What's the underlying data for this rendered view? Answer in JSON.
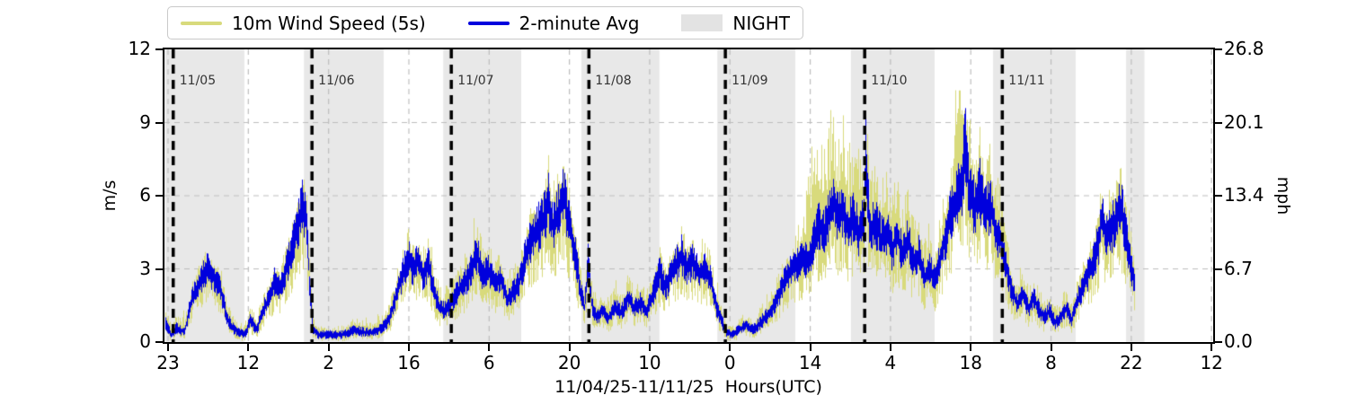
{
  "figure": {
    "legend": {
      "items": [
        {
          "label": "10m Wind Speed (5s)",
          "swatch": "line",
          "color": "#d8da7c"
        },
        {
          "label": "2-minute Avg",
          "swatch": "line",
          "color": "#0000dd"
        },
        {
          "label": "NIGHT",
          "swatch": "patch",
          "color": "#e3e3e3"
        }
      ]
    },
    "axes": {
      "ylabel_left": "m/s",
      "ylabel_right": "mph",
      "xlabel": "11/04/25-11/11/25  Hours(UTC)",
      "yticks_left": [
        {
          "v": 0,
          "label": "0"
        },
        {
          "v": 3,
          "label": "3"
        },
        {
          "v": 6,
          "label": "6"
        },
        {
          "v": 9,
          "label": "9"
        },
        {
          "v": 12,
          "label": "12"
        }
      ],
      "yticks_right": [
        {
          "v": 0,
          "label": "0.0"
        },
        {
          "v": 3,
          "label": "6.7"
        },
        {
          "v": 6,
          "label": "13.4"
        },
        {
          "v": 9,
          "label": "20.1"
        },
        {
          "v": 12,
          "label": "26.8"
        }
      ],
      "xticks": [
        {
          "t": 1,
          "label": "23"
        },
        {
          "t": 15,
          "label": "12"
        },
        {
          "t": 29,
          "label": "2"
        },
        {
          "t": 43,
          "label": "16"
        },
        {
          "t": 57,
          "label": "6"
        },
        {
          "t": 71,
          "label": "20"
        },
        {
          "t": 85,
          "label": "10"
        },
        {
          "t": 99,
          "label": "0"
        },
        {
          "t": 113,
          "label": "14"
        },
        {
          "t": 127,
          "label": "4"
        },
        {
          "t": 141,
          "label": "18"
        },
        {
          "t": 155,
          "label": "8"
        },
        {
          "t": 169,
          "label": "22"
        },
        {
          "t": 183,
          "label": "12"
        }
      ]
    },
    "day_markers": [
      {
        "t": 1.9,
        "label": "11/05"
      },
      {
        "t": 26.1,
        "label": "11/06"
      },
      {
        "t": 50.4,
        "label": "11/07"
      },
      {
        "t": 74.4,
        "label": "11/08"
      },
      {
        "t": 98.2,
        "label": "11/09"
      },
      {
        "t": 122.5,
        "label": "11/10"
      },
      {
        "t": 146.5,
        "label": "11/11"
      }
    ],
    "night_bands": [
      [
        0.3,
        14.3
      ],
      [
        24.7,
        38.6
      ],
      [
        49.0,
        62.6
      ],
      [
        73.1,
        86.7
      ],
      [
        96.8,
        110.4
      ],
      [
        120.1,
        134.7
      ],
      [
        144.9,
        159.3
      ],
      [
        168.1,
        171.3
      ]
    ],
    "colors": {
      "raw": "#d8da7c",
      "avg": "#0000dd",
      "night": "#e8e8e8",
      "grid": "#bdbdbd",
      "day_line": "#000000",
      "annotation": "#333333"
    }
  },
  "chart_data": {
    "type": "line",
    "title": "",
    "xlabel": "11/04/25-11/11/25  Hours(UTC)",
    "ylabel_left": "m/s",
    "ylabel_right": "mph",
    "ylim_mps": [
      0,
      12
    ],
    "ylim_mph": [
      0.0,
      26.8
    ],
    "ytick_labels_mps": [
      "0",
      "3",
      "6",
      "9",
      "12"
    ],
    "ytick_labels_mph": [
      "0.0",
      "6.7",
      "13.4",
      "20.1",
      "26.8"
    ],
    "x_axis": "hours since 11/04/25 22:00 UTC, one tick every 14 h",
    "xtick_hours_utc": [
      "23",
      "12",
      "2",
      "16",
      "6",
      "20",
      "10",
      "0",
      "14",
      "4",
      "18",
      "8",
      "22",
      "12"
    ],
    "legend_position": "upper left",
    "grid": true,
    "day_lines": [
      "11/05",
      "11/06",
      "11/07",
      "11/08",
      "11/09",
      "11/10",
      "11/11"
    ],
    "night_label": "NIGHT",
    "series": [
      {
        "name": "10m Wind Speed (5s)",
        "color": "#d8da7c",
        "style": "noisy 5-second raw trace (gust/lull envelope around average)"
      },
      {
        "name": "2-minute Avg",
        "color": "#0000dd",
        "style": "2-minute averaged wind speed"
      },
      {
        "name": "NIGHT",
        "color": "#e8e8e8",
        "style": "shaded night-time bands"
      }
    ],
    "series_columns": [
      "t_hours_from_1104_2200utc",
      "avg_2min_mps",
      "gust_5s_peak_mps"
    ],
    "samples": [
      [
        0.4,
        0.8,
        1.4
      ],
      [
        1.5,
        0.3,
        0.8
      ],
      [
        2.4,
        0.6,
        1.2
      ],
      [
        3.8,
        0.4,
        1.1
      ],
      [
        4.9,
        1.6,
        2.3
      ],
      [
        5.9,
        2.2,
        3.0
      ],
      [
        7.0,
        2.8,
        3.6
      ],
      [
        7.9,
        3.0,
        3.9
      ],
      [
        9.0,
        2.6,
        3.5
      ],
      [
        10.1,
        2.2,
        3.1
      ],
      [
        11.2,
        1.0,
        1.9
      ],
      [
        12.1,
        0.6,
        1.3
      ],
      [
        13.2,
        0.4,
        0.9
      ],
      [
        14.3,
        0.3,
        0.8
      ],
      [
        15.3,
        0.9,
        1.6
      ],
      [
        16.4,
        0.5,
        1.1
      ],
      [
        17.5,
        1.3,
        2.1
      ],
      [
        18.6,
        1.8,
        2.7
      ],
      [
        19.7,
        2.6,
        3.5
      ],
      [
        20.6,
        2.2,
        3.2
      ],
      [
        21.5,
        3.0,
        4.1
      ],
      [
        22.6,
        3.8,
        5.0
      ],
      [
        23.6,
        4.8,
        6.2
      ],
      [
        24.4,
        5.7,
        7.0
      ],
      [
        25.1,
        4.9,
        6.3
      ],
      [
        25.6,
        2.5,
        4.0
      ],
      [
        26.2,
        0.5,
        1.2
      ],
      [
        27.3,
        0.3,
        0.7
      ],
      [
        28.9,
        0.3,
        0.6
      ],
      [
        31.2,
        0.3,
        0.7
      ],
      [
        33.6,
        0.5,
        1.0
      ],
      [
        35.2,
        0.4,
        0.9
      ],
      [
        36.7,
        0.4,
        0.8
      ],
      [
        38.3,
        0.6,
        1.2
      ],
      [
        39.6,
        1.0,
        1.8
      ],
      [
        40.7,
        1.9,
        2.8
      ],
      [
        41.9,
        2.8,
        3.8
      ],
      [
        42.8,
        3.5,
        4.7
      ],
      [
        43.6,
        2.9,
        4.0
      ],
      [
        44.4,
        3.3,
        4.4
      ],
      [
        45.4,
        2.8,
        3.9
      ],
      [
        46.3,
        3.2,
        4.3
      ],
      [
        47.2,
        2.2,
        3.3
      ],
      [
        48.2,
        1.4,
        2.4
      ],
      [
        49.3,
        1.3,
        2.2
      ],
      [
        50.4,
        1.6,
        2.6
      ],
      [
        51.5,
        2.1,
        3.1
      ],
      [
        52.6,
        2.4,
        3.4
      ],
      [
        53.7,
        2.9,
        4.0
      ],
      [
        54.8,
        3.6,
        5.5
      ],
      [
        55.9,
        2.7,
        3.9
      ],
      [
        56.8,
        2.9,
        4.1
      ],
      [
        57.9,
        2.4,
        3.5
      ],
      [
        59.0,
        2.6,
        3.7
      ],
      [
        60.1,
        1.7,
        2.7
      ],
      [
        61.0,
        2.0,
        3.0
      ],
      [
        62.1,
        2.4,
        3.5
      ],
      [
        63.1,
        3.3,
        4.5
      ],
      [
        64.2,
        4.2,
        5.6
      ],
      [
        65.3,
        4.6,
        6.1
      ],
      [
        66.4,
        5.0,
        6.6
      ],
      [
        67.3,
        5.9,
        8.3
      ],
      [
        68.1,
        4.6,
        6.4
      ],
      [
        69.0,
        5.3,
        7.1
      ],
      [
        70.0,
        6.0,
        7.8
      ],
      [
        70.9,
        4.8,
        6.5
      ],
      [
        71.8,
        3.9,
        5.4
      ],
      [
        72.8,
        2.2,
        3.5
      ],
      [
        73.6,
        1.4,
        2.5
      ],
      [
        74.2,
        3.3,
        4.4
      ],
      [
        74.8,
        1.6,
        2.7
      ],
      [
        75.6,
        1.0,
        1.9
      ],
      [
        76.7,
        1.3,
        2.2
      ],
      [
        77.8,
        1.0,
        1.9
      ],
      [
        78.9,
        1.4,
        2.4
      ],
      [
        80.0,
        1.2,
        2.1
      ],
      [
        81.1,
        1.8,
        2.8
      ],
      [
        82.2,
        1.4,
        2.4
      ],
      [
        83.3,
        1.6,
        2.6
      ],
      [
        84.4,
        1.3,
        2.3
      ],
      [
        85.5,
        1.9,
        2.9
      ],
      [
        86.6,
        2.9,
        4.0
      ],
      [
        87.7,
        2.2,
        3.3
      ],
      [
        88.8,
        2.9,
        4.0
      ],
      [
        89.9,
        3.3,
        4.5
      ],
      [
        90.5,
        3.6,
        4.8
      ],
      [
        91.3,
        3.0,
        4.2
      ],
      [
        92.4,
        3.3,
        4.5
      ],
      [
        93.5,
        2.8,
        3.9
      ],
      [
        94.6,
        3.1,
        4.3
      ],
      [
        95.5,
        2.6,
        3.7
      ],
      [
        96.6,
        1.4,
        2.4
      ],
      [
        97.6,
        0.8,
        1.5
      ],
      [
        98.3,
        0.4,
        0.9
      ],
      [
        99.4,
        0.3,
        0.7
      ],
      [
        100.5,
        0.5,
        1.0
      ],
      [
        101.8,
        0.7,
        1.3
      ],
      [
        103.0,
        0.5,
        1.0
      ],
      [
        104.3,
        0.8,
        1.5
      ],
      [
        105.5,
        1.1,
        1.9
      ],
      [
        106.8,
        1.6,
        2.5
      ],
      [
        108.0,
        2.3,
        3.3
      ],
      [
        109.3,
        2.8,
        3.9
      ],
      [
        110.5,
        3.2,
        4.4
      ],
      [
        111.6,
        3.4,
        4.7
      ],
      [
        112.6,
        3.3,
        7.3
      ],
      [
        113.5,
        4.2,
        7.9
      ],
      [
        114.5,
        4.8,
        9.8
      ],
      [
        115.4,
        4.4,
        8.2
      ],
      [
        116.3,
        5.2,
        9.4
      ],
      [
        117.0,
        5.8,
        10.3
      ],
      [
        117.8,
        5.0,
        9.0
      ],
      [
        118.5,
        5.5,
        9.8
      ],
      [
        119.5,
        4.6,
        8.0
      ],
      [
        120.4,
        5.2,
        8.6
      ],
      [
        121.4,
        4.4,
        7.6
      ],
      [
        122.3,
        5.0,
        8.4
      ],
      [
        122.6,
        7.8,
        9.0
      ],
      [
        123.4,
        4.4,
        7.2
      ],
      [
        124.3,
        5.0,
        7.8
      ],
      [
        125.3,
        4.2,
        6.8
      ],
      [
        126.2,
        4.6,
        7.2
      ],
      [
        127.2,
        3.8,
        6.2
      ],
      [
        128.1,
        4.4,
        6.9
      ],
      [
        129.0,
        3.6,
        5.8
      ],
      [
        130.0,
        4.2,
        6.6
      ],
      [
        130.9,
        3.2,
        5.2
      ],
      [
        131.9,
        3.6,
        5.6
      ],
      [
        132.8,
        2.6,
        4.2
      ],
      [
        133.7,
        3.0,
        4.6
      ],
      [
        134.7,
        2.5,
        4.0
      ],
      [
        135.6,
        3.4,
        5.2
      ],
      [
        136.6,
        4.4,
        6.8
      ],
      [
        137.5,
        5.2,
        8.6
      ],
      [
        138.4,
        5.8,
        10.2
      ],
      [
        139.4,
        6.4,
        10.8
      ],
      [
        140.0,
        8.4,
        10.9
      ],
      [
        140.6,
        6.2,
        9.6
      ],
      [
        141.6,
        5.6,
        8.8
      ],
      [
        142.5,
        6.3,
        9.3
      ],
      [
        143.5,
        5.2,
        8.0
      ],
      [
        144.4,
        5.6,
        8.4
      ],
      [
        145.3,
        4.6,
        7.0
      ],
      [
        146.3,
        4.2,
        6.3
      ],
      [
        147.2,
        3.0,
        4.6
      ],
      [
        148.2,
        2.0,
        3.2
      ],
      [
        149.1,
        1.6,
        2.6
      ],
      [
        150.0,
        2.0,
        3.0
      ],
      [
        151.0,
        1.4,
        2.3
      ],
      [
        151.9,
        1.8,
        2.8
      ],
      [
        152.9,
        1.3,
        2.2
      ],
      [
        153.8,
        1.0,
        1.8
      ],
      [
        154.7,
        1.3,
        2.2
      ],
      [
        155.7,
        0.8,
        1.5
      ],
      [
        156.6,
        1.0,
        1.8
      ],
      [
        157.6,
        1.4,
        2.3
      ],
      [
        158.5,
        0.9,
        1.6
      ],
      [
        159.4,
        1.6,
        2.6
      ],
      [
        160.4,
        2.2,
        3.2
      ],
      [
        161.3,
        2.7,
        3.8
      ],
      [
        162.3,
        3.3,
        4.5
      ],
      [
        163.2,
        4.0,
        5.4
      ],
      [
        163.8,
        5.3,
        6.9
      ],
      [
        164.5,
        4.2,
        5.8
      ],
      [
        165.4,
        4.6,
        6.2
      ],
      [
        166.3,
        5.0,
        6.6
      ],
      [
        167.1,
        5.6,
        7.2
      ],
      [
        167.9,
        4.6,
        6.4
      ],
      [
        168.5,
        3.8,
        5.6
      ],
      [
        169.1,
        2.8,
        4.4
      ],
      [
        169.6,
        2.3,
        3.6
      ]
    ]
  }
}
